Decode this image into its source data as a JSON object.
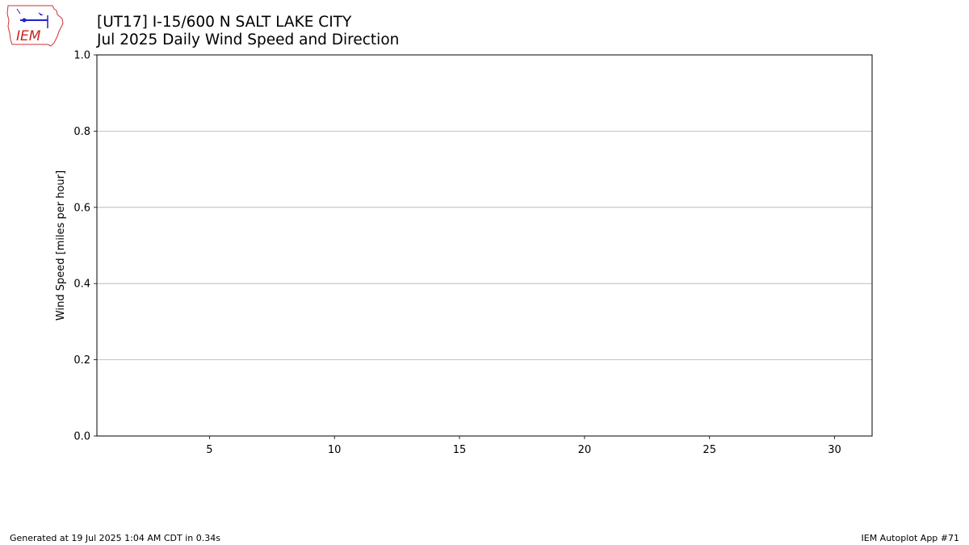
{
  "logo": {
    "text": "IEM"
  },
  "header": {
    "title_line1": "[UT17] I-15/600 N SALT LAKE CITY",
    "title_line2": "Jul 2025 Daily Wind Speed and Direction"
  },
  "chart_data": {
    "type": "bar",
    "title": "[UT17] I-15/600 N SALT LAKE CITY\nJul 2025 Daily Wind Speed and Direction",
    "xlabel": "",
    "ylabel": "Wind Speed [miles per hour]",
    "xlim": [
      0.5,
      31.5
    ],
    "ylim": [
      0.0,
      1.0
    ],
    "xticks": [
      5,
      10,
      15,
      20,
      25,
      30
    ],
    "yticks": [
      0.0,
      0.2,
      0.4,
      0.6,
      0.8,
      1.0
    ],
    "ytick_labels": [
      "0.0",
      "0.2",
      "0.4",
      "0.6",
      "0.8",
      "1.0"
    ],
    "grid": "y",
    "series": [],
    "colors": {
      "grid": "#b0b0b0",
      "axis": "#000000"
    }
  },
  "footer": {
    "generated": "Generated at 19 Jul 2025 1:04 AM CDT in 0.34s",
    "app": "IEM Autoplot App #71"
  }
}
